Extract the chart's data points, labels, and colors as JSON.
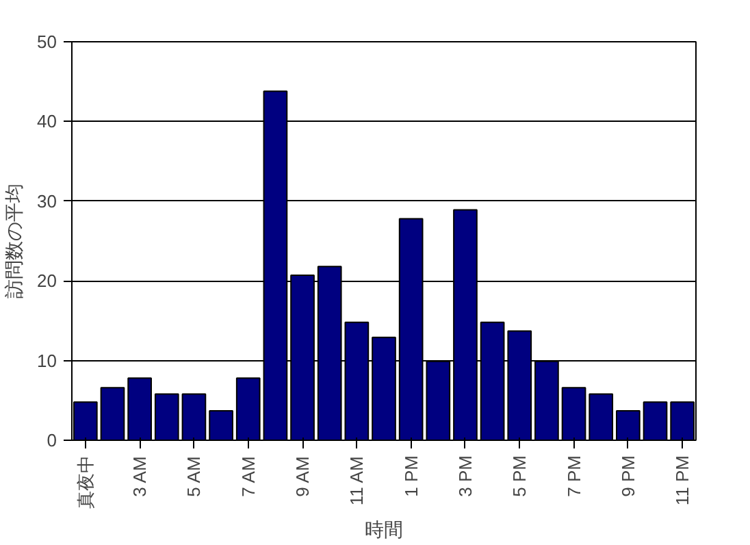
{
  "chart_data": {
    "type": "bar",
    "xlabel": "時間",
    "ylabel": "訪問数の平均",
    "categories": [
      "真夜中",
      null,
      "3 AM",
      null,
      "5 AM",
      null,
      "7 AM",
      null,
      "9 AM",
      null,
      "11 AM",
      null,
      "1 PM",
      null,
      "3 PM",
      null,
      "5 PM",
      null,
      "7 PM",
      null,
      "9 PM",
      null,
      "11 PM"
    ],
    "values": [
      4.8,
      6.6,
      7.8,
      5.8,
      5.8,
      3.7,
      7.8,
      43.8,
      20.7,
      21.8,
      14.8,
      12.9,
      27.8,
      9.9,
      28.9,
      14.8,
      13.7,
      9.9,
      6.6,
      5.8,
      3.7,
      4.8,
      4.8
    ],
    "color": "#000080",
    "ylim": [
      0,
      50
    ],
    "yticks": [
      0,
      10,
      20,
      30,
      40,
      50
    ],
    "grid": "y"
  }
}
